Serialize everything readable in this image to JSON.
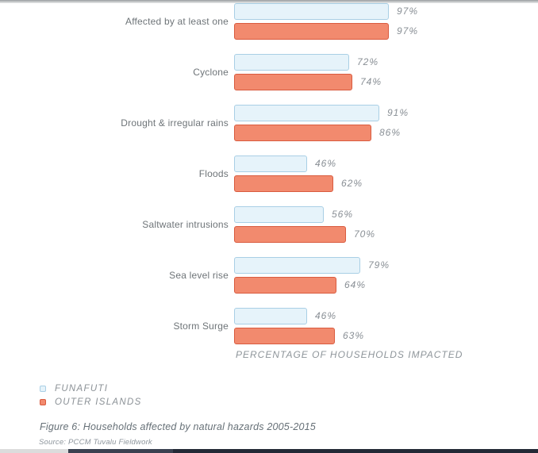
{
  "chart_data": {
    "type": "bar",
    "orientation": "horizontal",
    "title": "",
    "xlabel": "PERCENTAGE OF HOUSEHOLDS IMPACTED",
    "ylabel": "",
    "xlim": [
      0,
      100
    ],
    "grid": false,
    "legend_position": "bottom-left",
    "value_labels": "outside-end",
    "value_suffix": "%",
    "categories": [
      "Affected by at least one",
      "Cyclone",
      "Drought & irregular rains",
      "Floods",
      "Saltwater intrusions",
      "Sea level rise",
      "Storm Surge"
    ],
    "series": [
      {
        "name": "FUNAFUTI",
        "values": [
          97,
          72,
          91,
          46,
          56,
          79,
          46
        ]
      },
      {
        "name": "OUTER ISLANDS",
        "values": [
          97,
          74,
          86,
          62,
          70,
          64,
          63
        ]
      }
    ]
  },
  "legend": {
    "items": [
      {
        "label": "FUNAFUTI"
      },
      {
        "label": "OUTER ISLANDS"
      }
    ]
  },
  "caption": "Figure 6: Households affected by natural hazards 2005-2015",
  "source": "Source: PCCM Tuvalu Fieldwork",
  "colors": {
    "funafuti_fill": "#e6f3fa",
    "funafuti_border": "#a9cfe5",
    "outer_islands_fill": "#f28a6e",
    "outer_islands_border": "#d95b3f",
    "value_label_text": "#898f95",
    "category_text": "#6e7478",
    "axis_label_text": "#8e959a",
    "caption_text": "#667077",
    "bottom_edge_light": "#dcdcdc",
    "bottom_edge_mid": "#3a4150",
    "bottom_edge_dark": "#232936"
  }
}
